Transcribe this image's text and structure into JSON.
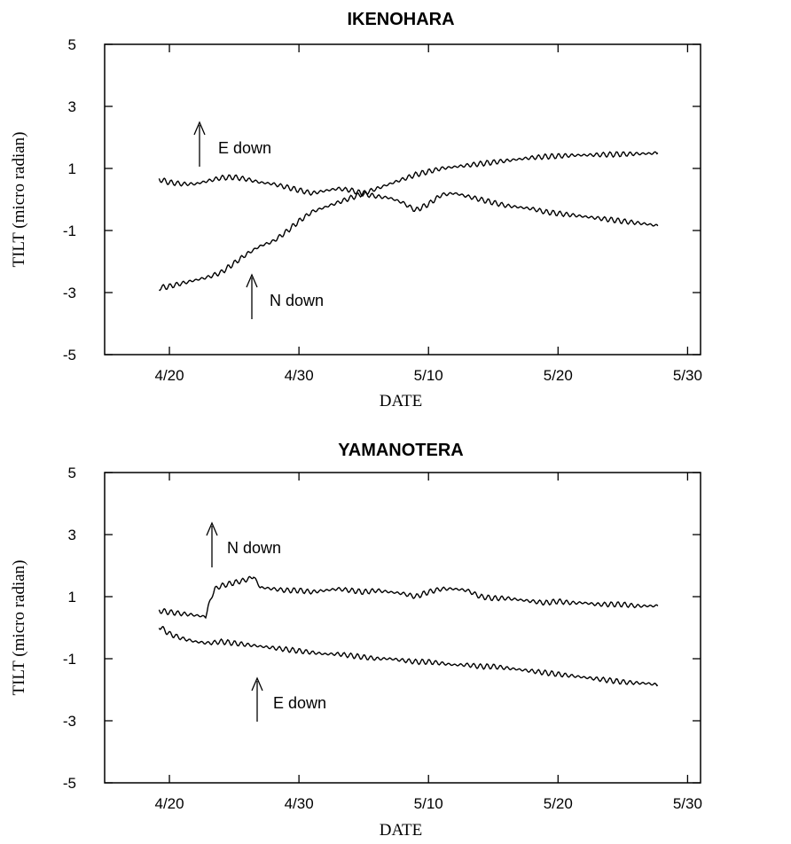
{
  "chart_data": [
    {
      "type": "line",
      "title": "IKENOHARA",
      "xlabel": "DATE",
      "ylabel": "TILT (micro radian)",
      "x_unit": "day (April 20 = 20, May 10 = 40)",
      "xlim": [
        15,
        61
      ],
      "ylim": [
        -5,
        5
      ],
      "x_ticks": [
        20,
        30,
        40,
        50,
        60
      ],
      "x_tick_labels": [
        "4/20",
        "4/30",
        "5/10",
        "5/20",
        "5/30"
      ],
      "y_ticks": [
        -5,
        -3,
        -1,
        1,
        3,
        5
      ],
      "y_tick_labels": [
        "-5",
        "-3",
        "-1",
        "1",
        "3",
        "5"
      ],
      "grid": false,
      "series": [
        {
          "name": "E down",
          "x": [
            19.2,
            20,
            21,
            22,
            23,
            24,
            25,
            26,
            27,
            28,
            29,
            30,
            31,
            32,
            33,
            34,
            35,
            36,
            37,
            38,
            39,
            40,
            41,
            42,
            43,
            44,
            45,
            46,
            47,
            48,
            49,
            50,
            51,
            52,
            53,
            54,
            55,
            56,
            57,
            57.7
          ],
          "y": [
            0.65,
            0.55,
            0.5,
            0.5,
            0.6,
            0.7,
            0.72,
            0.65,
            0.55,
            0.5,
            0.4,
            0.3,
            0.2,
            0.28,
            0.35,
            0.3,
            0.18,
            0.1,
            0.05,
            -0.1,
            -0.35,
            -0.15,
            0.15,
            0.2,
            0.1,
            0.0,
            -0.1,
            -0.2,
            -0.25,
            -0.3,
            -0.4,
            -0.45,
            -0.5,
            -0.55,
            -0.6,
            -0.65,
            -0.7,
            -0.75,
            -0.8,
            -0.85
          ],
          "annotation": "E down"
        },
        {
          "name": "N down",
          "x": [
            19.2,
            20,
            21,
            22,
            23,
            24,
            25,
            26,
            27,
            28,
            29,
            30,
            31,
            32,
            33,
            34,
            35,
            36,
            37,
            38,
            39,
            40,
            41,
            42,
            43,
            44,
            45,
            46,
            47,
            48,
            49,
            50,
            51,
            52,
            53,
            54,
            55,
            56,
            57,
            57.7
          ],
          "y": [
            -2.85,
            -2.8,
            -2.7,
            -2.6,
            -2.5,
            -2.35,
            -2.05,
            -1.75,
            -1.5,
            -1.35,
            -1.05,
            -0.7,
            -0.4,
            -0.25,
            -0.1,
            0.05,
            0.2,
            0.35,
            0.5,
            0.65,
            0.8,
            0.9,
            1.0,
            1.05,
            1.1,
            1.15,
            1.2,
            1.25,
            1.3,
            1.35,
            1.38,
            1.4,
            1.42,
            1.43,
            1.44,
            1.45,
            1.46,
            1.47,
            1.48,
            1.5
          ],
          "annotation": "N down"
        }
      ]
    },
    {
      "type": "line",
      "title": "YAMANOTERA",
      "xlabel": "DATE",
      "ylabel": "TILT (micro radian)",
      "x_unit": "day (April 20 = 20, May 10 = 40)",
      "xlim": [
        15,
        61
      ],
      "ylim": [
        -5,
        5
      ],
      "x_ticks": [
        20,
        30,
        40,
        50,
        60
      ],
      "x_tick_labels": [
        "4/20",
        "4/30",
        "5/10",
        "5/20",
        "5/30"
      ],
      "y_ticks": [
        -5,
        -3,
        -1,
        1,
        3,
        5
      ],
      "y_tick_labels": [
        "-5",
        "-3",
        "-1",
        "1",
        "3",
        "5"
      ],
      "grid": false,
      "series": [
        {
          "name": "N down",
          "x": [
            19.2,
            20,
            21,
            22,
            22.8,
            23,
            23.5,
            24,
            25,
            26,
            26.5,
            27,
            28,
            29,
            30,
            31,
            32,
            33,
            34,
            35,
            36,
            37,
            38,
            39,
            40,
            41,
            42,
            43,
            44,
            45,
            46,
            47,
            48,
            49,
            50,
            51,
            52,
            53,
            54,
            55,
            56,
            57,
            57.7
          ],
          "y": [
            0.55,
            0.5,
            0.45,
            0.4,
            0.35,
            0.7,
            1.25,
            1.35,
            1.45,
            1.55,
            1.65,
            1.3,
            1.25,
            1.2,
            1.2,
            1.15,
            1.2,
            1.25,
            1.2,
            1.15,
            1.2,
            1.15,
            1.1,
            1.0,
            1.15,
            1.25,
            1.25,
            1.2,
            1.0,
            0.95,
            0.95,
            0.9,
            0.85,
            0.8,
            0.85,
            0.8,
            0.8,
            0.75,
            0.75,
            0.75,
            0.7,
            0.7,
            0.7
          ],
          "annotation": "N down"
        },
        {
          "name": "E down",
          "x": [
            19.2,
            20,
            21,
            22,
            23,
            24,
            25,
            26,
            27,
            28,
            29,
            30,
            31,
            32,
            33,
            34,
            35,
            36,
            37,
            38,
            39,
            40,
            41,
            42,
            43,
            44,
            45,
            46,
            47,
            48,
            49,
            50,
            51,
            52,
            53,
            54,
            55,
            56,
            57,
            57.7
          ],
          "y": [
            0.05,
            -0.2,
            -0.35,
            -0.45,
            -0.5,
            -0.45,
            -0.5,
            -0.55,
            -0.6,
            -0.65,
            -0.7,
            -0.75,
            -0.8,
            -0.85,
            -0.85,
            -0.9,
            -0.95,
            -1.0,
            -1.0,
            -1.05,
            -1.1,
            -1.1,
            -1.15,
            -1.2,
            -1.2,
            -1.25,
            -1.25,
            -1.3,
            -1.35,
            -1.4,
            -1.45,
            -1.5,
            -1.55,
            -1.6,
            -1.65,
            -1.7,
            -1.75,
            -1.78,
            -1.8,
            -1.85
          ],
          "annotation": "E down"
        }
      ]
    }
  ]
}
